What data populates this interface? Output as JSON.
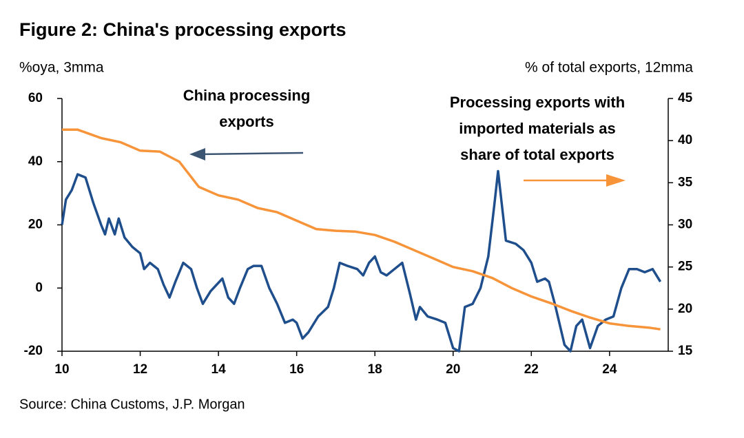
{
  "chart_data": {
    "type": "line",
    "title": "Figure 2: China's processing exports",
    "y_label": "%oya, 3mma",
    "y2_label": "% of total exports, 12mma",
    "source": "Source: China Customs, J.P. Morgan",
    "annotations": [
      {
        "lines": [
          "China processing",
          "exports"
        ]
      },
      {
        "lines": [
          "Processing exports with",
          "imported materials as",
          "share of total exports"
        ]
      }
    ],
    "xlim": [
      10,
      25.5
    ],
    "xticks": [
      10,
      12,
      14,
      16,
      18,
      20,
      22,
      24
    ],
    "ylim": [
      -20,
      60
    ],
    "yticks": [
      -20,
      0,
      20,
      40,
      60
    ],
    "y2lim": [
      15,
      45
    ],
    "y2ticks": [
      15,
      20,
      25,
      30,
      35,
      40,
      45
    ],
    "series": [
      {
        "name": "China processing exports",
        "color": "#1f4e8c",
        "axis": "y",
        "x": [
          10.0,
          10.1,
          10.25,
          10.4,
          10.6,
          10.8,
          11.0,
          11.1,
          11.2,
          11.35,
          11.45,
          11.6,
          11.8,
          12.0,
          12.1,
          12.25,
          12.45,
          12.6,
          12.75,
          12.9,
          13.1,
          13.3,
          13.45,
          13.6,
          13.8,
          14.1,
          14.25,
          14.4,
          14.55,
          14.75,
          14.9,
          15.1,
          15.3,
          15.5,
          15.7,
          15.9,
          16.0,
          16.15,
          16.3,
          16.55,
          16.8,
          16.95,
          17.1,
          17.3,
          17.55,
          17.7,
          17.85,
          18.0,
          18.15,
          18.3,
          18.5,
          18.7,
          18.9,
          19.05,
          19.15,
          19.35,
          19.6,
          19.8,
          20.0,
          20.15,
          20.3,
          20.5,
          20.7,
          20.9,
          21.05,
          21.15,
          21.35,
          21.6,
          21.8,
          22.0,
          22.15,
          22.35,
          22.45,
          22.6,
          22.85,
          23.0,
          23.15,
          23.3,
          23.5,
          23.7,
          23.9,
          24.1,
          24.3,
          24.5,
          24.7,
          24.9,
          25.1,
          25.3
        ],
        "values": [
          20,
          28,
          31,
          36,
          35,
          27,
          20,
          17,
          22,
          17,
          22,
          16,
          13,
          11,
          6,
          8,
          6,
          1,
          -3,
          2,
          8,
          6,
          0,
          -5,
          -1,
          3,
          -3,
          -5,
          0,
          6,
          7,
          7,
          0,
          -5,
          -11,
          -10,
          -11,
          -16,
          -14,
          -9,
          -6,
          0,
          8,
          7,
          6,
          4,
          8,
          10,
          5,
          4,
          6,
          8,
          -2,
          -10,
          -6,
          -9,
          -10,
          -11,
          -19,
          -20,
          -6,
          -5,
          0,
          10,
          26,
          37,
          15,
          14,
          12,
          8,
          2,
          3,
          2,
          -5,
          -18,
          -20,
          -12,
          -10,
          -19,
          -12,
          -10,
          -9,
          0,
          6,
          6,
          5,
          6,
          2
        ]
      },
      {
        "name": "Processing exports with imported materials as share of total exports",
        "color": "#f7943a",
        "axis": "y2",
        "x": [
          10.0,
          10.4,
          11.0,
          11.5,
          12.0,
          12.5,
          13.0,
          13.5,
          14.0,
          14.5,
          15.0,
          15.5,
          16.0,
          16.5,
          17.0,
          17.5,
          18.0,
          18.5,
          19.0,
          19.5,
          20.0,
          20.5,
          21.0,
          21.5,
          22.0,
          22.5,
          23.0,
          23.5,
          24.0,
          24.5,
          25.0,
          25.3
        ],
        "values": [
          41.3,
          41.3,
          40.3,
          39.8,
          38.8,
          38.7,
          37.5,
          34.5,
          33.5,
          33.0,
          32.0,
          31.5,
          30.5,
          29.5,
          29.3,
          29.2,
          28.8,
          28.0,
          27.0,
          26.0,
          25.0,
          24.5,
          23.7,
          22.5,
          21.5,
          20.7,
          19.8,
          19.0,
          18.3,
          18.0,
          17.8,
          17.6
        ]
      }
    ]
  }
}
